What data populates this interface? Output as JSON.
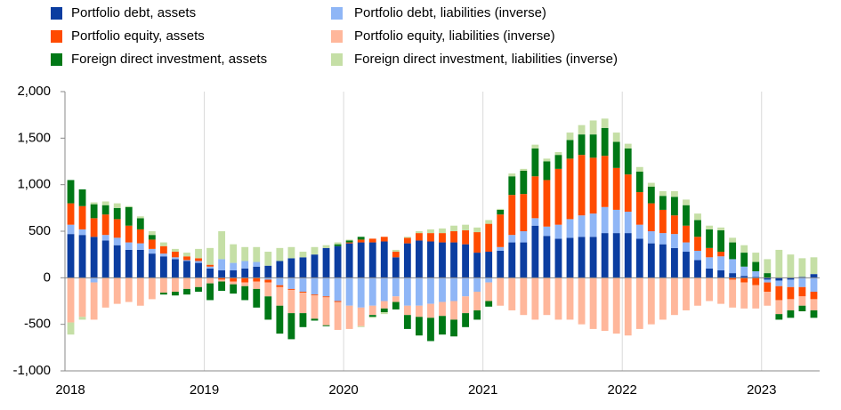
{
  "chart_data": {
    "type": "bar",
    "stacked": true,
    "categories": [
      "2018",
      null,
      null,
      null,
      null,
      null,
      null,
      null,
      null,
      null,
      null,
      null,
      "2019",
      null,
      null,
      null,
      null,
      null,
      null,
      null,
      null,
      null,
      null,
      null,
      "2020",
      null,
      null,
      null,
      null,
      null,
      null,
      null,
      null,
      null,
      null,
      null,
      "2021",
      null,
      null,
      null,
      null,
      null,
      null,
      null,
      null,
      null,
      null,
      null,
      "2022",
      null,
      null,
      null,
      null,
      null,
      null,
      null,
      null,
      null,
      null,
      null,
      "2023",
      null,
      null,
      null,
      null
    ],
    "ylim": [
      -1000,
      2000
    ],
    "yticks": [
      {
        "value": -1000,
        "label": "-1,000"
      },
      -500,
      0,
      500,
      {
        "value": 1000,
        "label": "1,000"
      },
      {
        "value": 1500,
        "label": "1,500"
      },
      {
        "value": 2000,
        "label": "2,000"
      }
    ],
    "grid": true,
    "series": [
      {
        "name": "Portfolio debt, assets",
        "color": "#0b3da0",
        "values": [
          470,
          460,
          440,
          400,
          350,
          300,
          300,
          260,
          230,
          200,
          180,
          160,
          100,
          80,
          80,
          100,
          120,
          130,
          180,
          210,
          220,
          250,
          320,
          340,
          370,
          380,
          380,
          390,
          220,
          370,
          400,
          390,
          380,
          380,
          360,
          270,
          280,
          290,
          380,
          380,
          560,
          450,
          420,
          430,
          440,
          440,
          480,
          480,
          480,
          420,
          370,
          360,
          320,
          280,
          190,
          100,
          80,
          50,
          20,
          10,
          -20,
          -30,
          -20,
          10,
          40
        ]
      },
      {
        "name": "Portfolio debt, liabilities (inverse)",
        "color": "#8fb6f6",
        "values": [
          100,
          60,
          -50,
          60,
          80,
          80,
          70,
          50,
          30,
          20,
          10,
          20,
          20,
          120,
          80,
          80,
          50,
          -20,
          -80,
          -120,
          -150,
          -180,
          -200,
          -250,
          -300,
          -320,
          -300,
          -250,
          -200,
          -300,
          -300,
          -280,
          -260,
          -250,
          -200,
          -150,
          -50,
          40,
          80,
          120,
          80,
          100,
          150,
          200,
          230,
          250,
          280,
          250,
          230,
          150,
          130,
          120,
          150,
          100,
          100,
          120,
          150,
          150,
          100,
          60,
          -30,
          -60,
          -80,
          -100,
          -150
        ]
      },
      {
        "name": "Portfolio equity, assets",
        "color": "#ff4b00",
        "values": [
          230,
          250,
          200,
          220,
          200,
          180,
          150,
          100,
          80,
          60,
          40,
          30,
          20,
          -20,
          -40,
          -50,
          -40,
          -30,
          -20,
          -10,
          -10,
          -10,
          -10,
          -10,
          10,
          30,
          40,
          50,
          60,
          60,
          80,
          90,
          100,
          120,
          150,
          220,
          300,
          350,
          430,
          400,
          450,
          500,
          600,
          650,
          650,
          600,
          550,
          450,
          400,
          350,
          300,
          250,
          200,
          180,
          150,
          100,
          50,
          -20,
          -50,
          -80,
          -100,
          -150,
          -130,
          -100,
          -80
        ]
      },
      {
        "name": "Portfolio equity, liabilities (inverse)",
        "color": "#ffb79b",
        "values": [
          -480,
          -420,
          -400,
          -320,
          -280,
          -260,
          -300,
          -230,
          -160,
          -150,
          -120,
          -100,
          -60,
          -20,
          -30,
          -40,
          -80,
          -150,
          -200,
          -250,
          -220,
          -250,
          -300,
          -300,
          -250,
          -200,
          -100,
          -80,
          -60,
          -100,
          -120,
          -150,
          -150,
          -200,
          -180,
          -200,
          -200,
          -300,
          -350,
          -400,
          -450,
          -400,
          -450,
          -450,
          -500,
          -550,
          -570,
          -600,
          -620,
          -550,
          -500,
          -450,
          -400,
          -350,
          -300,
          -250,
          -280,
          -300,
          -280,
          -250,
          -150,
          -150,
          -120,
          -100,
          -120
        ]
      },
      {
        "name": "Foreign direct investment, assets",
        "color": "#007816",
        "values": [
          250,
          180,
          150,
          100,
          120,
          200,
          120,
          50,
          -20,
          -40,
          -60,
          -50,
          -180,
          -100,
          -100,
          -150,
          -200,
          -250,
          -300,
          -280,
          -150,
          -20,
          -10,
          20,
          20,
          30,
          -20,
          -40,
          -80,
          -150,
          -200,
          -250,
          -200,
          -180,
          -150,
          -100,
          -60,
          50,
          200,
          250,
          300,
          200,
          150,
          200,
          220,
          250,
          300,
          280,
          280,
          220,
          180,
          150,
          200,
          220,
          180,
          200,
          230,
          180,
          150,
          100,
          50,
          -60,
          -80,
          -60,
          -80
        ]
      },
      {
        "name": "Foreign direct investment, liabilities (inverse)",
        "color": "#c5dfa6",
        "values": [
          -130,
          -30,
          20,
          40,
          50,
          10,
          20,
          40,
          40,
          30,
          40,
          100,
          180,
          300,
          200,
          150,
          160,
          150,
          140,
          120,
          60,
          80,
          30,
          20,
          10,
          -10,
          -10,
          -20,
          20,
          10,
          20,
          40,
          50,
          60,
          60,
          50,
          40,
          10,
          30,
          20,
          40,
          30,
          30,
          80,
          100,
          150,
          100,
          100,
          50,
          50,
          40,
          50,
          60,
          60,
          70,
          40,
          30,
          50,
          80,
          100,
          150,
          300,
          250,
          200,
          180
        ]
      }
    ]
  }
}
